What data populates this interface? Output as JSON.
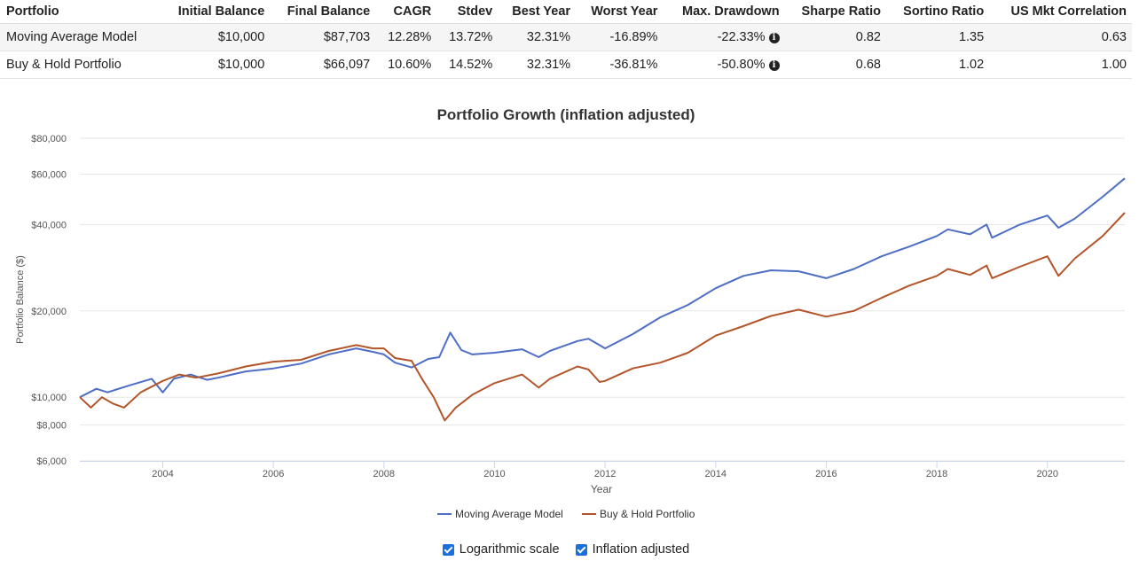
{
  "table": {
    "headers": [
      "Portfolio",
      "Initial Balance",
      "Final Balance",
      "CAGR",
      "Stdev",
      "Best Year",
      "Worst Year",
      "Max. Drawdown",
      "Sharpe Ratio",
      "Sortino Ratio",
      "US Mkt Correlation"
    ],
    "rows": [
      [
        "Moving Average Model",
        "$10,000",
        "$87,703",
        "12.28%",
        "13.72%",
        "32.31%",
        "-16.89%",
        "-22.33%",
        "0.82",
        "1.35",
        "0.63"
      ],
      [
        "Buy & Hold Portfolio",
        "$10,000",
        "$66,097",
        "10.60%",
        "14.52%",
        "32.31%",
        "-36.81%",
        "-50.80%",
        "0.68",
        "1.02",
        "1.00"
      ]
    ]
  },
  "chart_data": {
    "type": "line",
    "title": "Portfolio Growth (inflation adjusted)",
    "xlabel": "Year",
    "ylabel": "Portfolio Balance ($)",
    "y_scale": "log",
    "ylim": [
      6000,
      80000
    ],
    "xlim": [
      2002.5,
      2021.4
    ],
    "y_ticks": [
      6000,
      8000,
      10000,
      20000,
      40000,
      60000,
      80000
    ],
    "y_tick_labels": [
      "$6,000",
      "$8,000",
      "$10,000",
      "$20,000",
      "$40,000",
      "$60,000",
      "$80,000"
    ],
    "x_ticks": [
      2004,
      2006,
      2008,
      2010,
      2012,
      2014,
      2016,
      2018,
      2020
    ],
    "x_tick_labels": [
      "2004",
      "2006",
      "2008",
      "2010",
      "2012",
      "2014",
      "2016",
      "2018",
      "2020"
    ],
    "grid": true,
    "legend_position": "bottom-center",
    "series": [
      {
        "name": "Moving Average Model",
        "color": "#4e6ec5",
        "points": [
          [
            2002.5,
            10000
          ],
          [
            2002.8,
            10700
          ],
          [
            2003.0,
            10400
          ],
          [
            2003.4,
            11000
          ],
          [
            2003.8,
            11600
          ],
          [
            2004.0,
            10400
          ],
          [
            2004.2,
            11600
          ],
          [
            2004.5,
            12000
          ],
          [
            2004.8,
            11500
          ],
          [
            2005.0,
            11700
          ],
          [
            2005.5,
            12300
          ],
          [
            2006.0,
            12600
          ],
          [
            2006.5,
            13100
          ],
          [
            2007.0,
            14100
          ],
          [
            2007.5,
            14800
          ],
          [
            2007.8,
            14400
          ],
          [
            2008.0,
            14100
          ],
          [
            2008.2,
            13200
          ],
          [
            2008.5,
            12700
          ],
          [
            2008.8,
            13600
          ],
          [
            2009.0,
            13800
          ],
          [
            2009.2,
            16800
          ],
          [
            2009.4,
            14600
          ],
          [
            2009.6,
            14100
          ],
          [
            2010.0,
            14300
          ],
          [
            2010.5,
            14700
          ],
          [
            2010.8,
            13800
          ],
          [
            2011.0,
            14500
          ],
          [
            2011.5,
            15700
          ],
          [
            2011.7,
            16000
          ],
          [
            2011.9,
            15200
          ],
          [
            2012.0,
            14800
          ],
          [
            2012.5,
            16600
          ],
          [
            2013.0,
            19000
          ],
          [
            2013.5,
            21000
          ],
          [
            2014.0,
            24000
          ],
          [
            2014.5,
            26500
          ],
          [
            2015.0,
            27700
          ],
          [
            2015.5,
            27500
          ],
          [
            2016.0,
            26000
          ],
          [
            2016.5,
            28000
          ],
          [
            2017.0,
            31000
          ],
          [
            2017.5,
            33500
          ],
          [
            2018.0,
            36500
          ],
          [
            2018.2,
            38500
          ],
          [
            2018.6,
            37000
          ],
          [
            2018.9,
            40000
          ],
          [
            2019.0,
            36000
          ],
          [
            2019.5,
            40000
          ],
          [
            2020.0,
            43000
          ],
          [
            2020.2,
            39000
          ],
          [
            2020.5,
            42000
          ],
          [
            2021.0,
            50000
          ],
          [
            2021.4,
            58000
          ]
        ]
      },
      {
        "name": "Buy & Hold Portfolio",
        "color": "#b3552b",
        "points": [
          [
            2002.5,
            10000
          ],
          [
            2002.7,
            9200
          ],
          [
            2002.9,
            10000
          ],
          [
            2003.1,
            9500
          ],
          [
            2003.3,
            9200
          ],
          [
            2003.6,
            10400
          ],
          [
            2004.0,
            11400
          ],
          [
            2004.3,
            12000
          ],
          [
            2004.6,
            11700
          ],
          [
            2005.0,
            12100
          ],
          [
            2005.5,
            12800
          ],
          [
            2006.0,
            13300
          ],
          [
            2006.5,
            13500
          ],
          [
            2007.0,
            14500
          ],
          [
            2007.5,
            15200
          ],
          [
            2007.8,
            14800
          ],
          [
            2008.0,
            14800
          ],
          [
            2008.2,
            13700
          ],
          [
            2008.5,
            13400
          ],
          [
            2008.7,
            11500
          ],
          [
            2008.9,
            10000
          ],
          [
            2009.1,
            8300
          ],
          [
            2009.3,
            9200
          ],
          [
            2009.6,
            10200
          ],
          [
            2010.0,
            11200
          ],
          [
            2010.5,
            12000
          ],
          [
            2010.8,
            10800
          ],
          [
            2011.0,
            11600
          ],
          [
            2011.5,
            12800
          ],
          [
            2011.7,
            12500
          ],
          [
            2011.9,
            11300
          ],
          [
            2012.0,
            11400
          ],
          [
            2012.5,
            12600
          ],
          [
            2013.0,
            13200
          ],
          [
            2013.5,
            14300
          ],
          [
            2014.0,
            16400
          ],
          [
            2014.5,
            17700
          ],
          [
            2015.0,
            19200
          ],
          [
            2015.5,
            20200
          ],
          [
            2016.0,
            19100
          ],
          [
            2016.5,
            20000
          ],
          [
            2017.0,
            22200
          ],
          [
            2017.5,
            24500
          ],
          [
            2018.0,
            26500
          ],
          [
            2018.2,
            28000
          ],
          [
            2018.6,
            26700
          ],
          [
            2018.9,
            28800
          ],
          [
            2019.0,
            26000
          ],
          [
            2019.5,
            28500
          ],
          [
            2020.0,
            31000
          ],
          [
            2020.2,
            26500
          ],
          [
            2020.5,
            30500
          ],
          [
            2021.0,
            36500
          ],
          [
            2021.4,
            44000
          ]
        ]
      }
    ]
  },
  "controls": {
    "log_scale_label": "Logarithmic scale",
    "log_scale_checked": true,
    "inflation_label": "Inflation adjusted",
    "inflation_checked": true
  }
}
